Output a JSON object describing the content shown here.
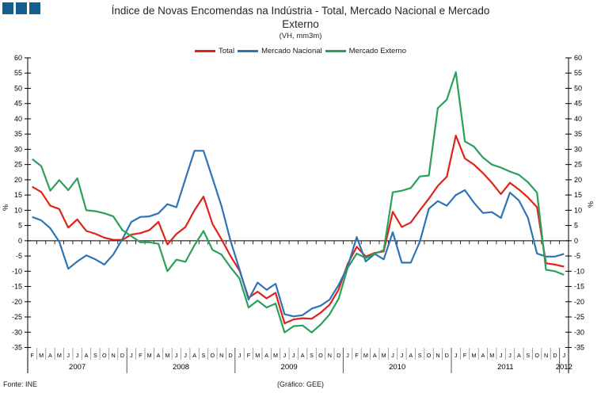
{
  "logo": {
    "color": "#135F8F",
    "square_count": 3
  },
  "title": {
    "line1": "Índice de Novas Encomendas na Indústria - Total, Mercado Nacional e Mercado",
    "line2": "Externo",
    "subtitle": "(VH, mm3m)"
  },
  "footer": {
    "source": "Fonte: INE",
    "credit": "(Gráfico: GEE)"
  },
  "chart_data": {
    "type": "line",
    "title": "Índice de Novas Encomendas na Indústria - Total, Mercado Nacional e Mercado Externo",
    "subtitle": "(VH, mm3m)",
    "ylabel": "%",
    "ylim": [
      -35,
      60
    ],
    "ytick_step": 5,
    "grid": false,
    "legend_position": "top-center",
    "years": [
      {
        "label": "2007",
        "months": [
          "F",
          "M",
          "A",
          "M",
          "J",
          "J",
          "A",
          "S",
          "O",
          "N",
          "D"
        ]
      },
      {
        "label": "2008",
        "months": [
          "J",
          "F",
          "M",
          "A",
          "M",
          "J",
          "J",
          "A",
          "S",
          "O",
          "N",
          "D"
        ]
      },
      {
        "label": "2009",
        "months": [
          "J",
          "F",
          "M",
          "A",
          "M",
          "J",
          "J",
          "A",
          "S",
          "O",
          "N",
          "D"
        ]
      },
      {
        "label": "2010",
        "months": [
          "J",
          "F",
          "M",
          "A",
          "M",
          "J",
          "J",
          "A",
          "S",
          "O",
          "N",
          "D"
        ]
      },
      {
        "label": "2011",
        "months": [
          "J",
          "F",
          "M",
          "A",
          "M",
          "J",
          "J",
          "A",
          "S",
          "O",
          "N",
          "D"
        ]
      },
      {
        "label": "2012",
        "months": [
          "J"
        ]
      }
    ],
    "series": [
      {
        "name": "Total",
        "color": "#E02318",
        "values": [
          17.7,
          16.0,
          11.5,
          10.4,
          4.3,
          7.0,
          3.2,
          2.3,
          1.0,
          0.3,
          0.3,
          2.0,
          2.5,
          3.5,
          6.2,
          -1.2,
          2.2,
          4.5,
          10.0,
          14.5,
          5.5,
          0.5,
          -5.0,
          -9.8,
          -18.7,
          -16.7,
          -18.9,
          -17.1,
          -27.1,
          -25.8,
          -25.4,
          -25.6,
          -23.6,
          -21.0,
          -16.0,
          -7.6,
          -2.0,
          -5.2,
          -4.0,
          -3.5,
          9.5,
          4.5,
          6.0,
          10.0,
          13.8,
          18.0,
          21.0,
          34.5,
          27.0,
          25.0,
          22.2,
          19.0,
          15.3,
          19.0,
          16.8,
          14.2,
          11.0,
          -7.4,
          -7.8,
          -8.5
        ]
      },
      {
        "name": "Mercado Nacional",
        "color": "#2E74B5",
        "values": [
          7.8,
          6.7,
          4.1,
          -0.3,
          -9.2,
          -6.8,
          -4.8,
          -6.1,
          -7.8,
          -4.5,
          0.5,
          6.2,
          7.8,
          8.0,
          9.0,
          12.0,
          11.0,
          20.3,
          29.5,
          29.5,
          20.5,
          11.4,
          0.0,
          -9.4,
          -19.3,
          -13.7,
          -16.1,
          -14.1,
          -24.1,
          -24.8,
          -24.4,
          -22.3,
          -21.3,
          -19.3,
          -14.5,
          -8.5,
          1.2,
          -6.8,
          -4.3,
          -6.1,
          2.8,
          -7.2,
          -7.2,
          -0.3,
          10.5,
          13.0,
          11.5,
          15.0,
          16.6,
          12.5,
          9.1,
          9.4,
          7.5,
          15.8,
          13.2,
          7.5,
          -4.2,
          -5.2,
          -5.2,
          -4.3
        ]
      },
      {
        "name": "Mercado Externo",
        "color": "#2BA05A",
        "values": [
          26.8,
          24.5,
          16.4,
          19.9,
          16.6,
          20.5,
          10.0,
          9.7,
          9.0,
          8.0,
          3.5,
          1.5,
          -0.5,
          -0.5,
          -1.0,
          -10.0,
          -6.2,
          -6.9,
          -1.5,
          3.2,
          -3.0,
          -4.5,
          -8.7,
          -12.4,
          -21.9,
          -19.6,
          -21.9,
          -20.6,
          -30.1,
          -28.0,
          -27.8,
          -30.1,
          -27.5,
          -24.1,
          -19.0,
          -8.9,
          -4.2,
          -5.7,
          -4.2,
          -3.1,
          15.9,
          16.4,
          17.3,
          21.1,
          21.4,
          43.5,
          46.3,
          55.3,
          32.6,
          30.9,
          27.3,
          25.0,
          24.0,
          22.7,
          21.6,
          19.2,
          15.8,
          -9.5,
          -10.0,
          -11.2
        ]
      }
    ]
  }
}
